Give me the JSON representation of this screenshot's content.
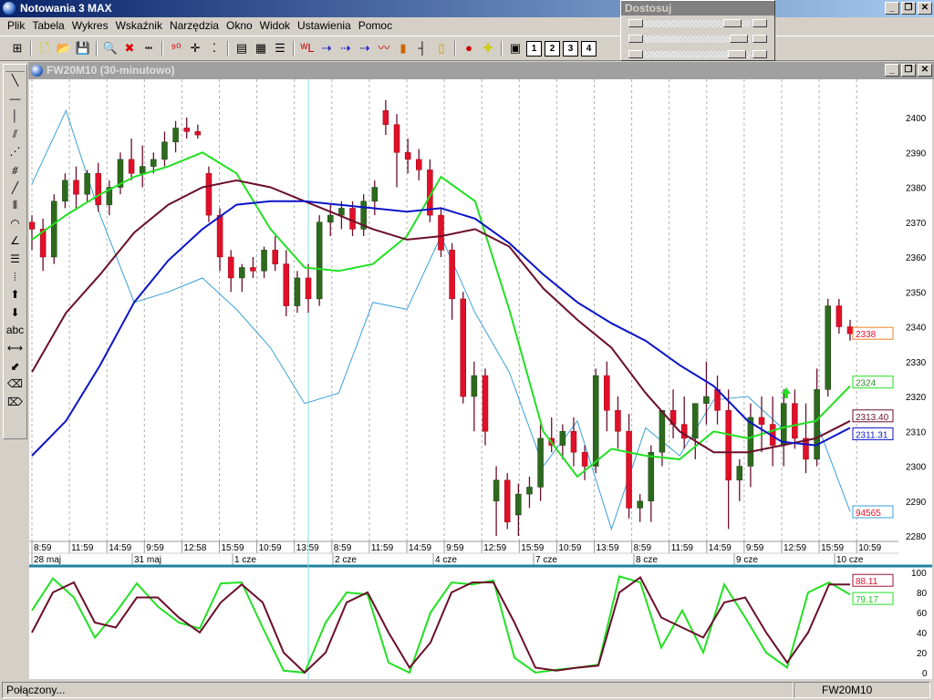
{
  "app": {
    "title": "Notowania 3 MAX"
  },
  "menu": [
    "Plik",
    "Tabela",
    "Wykres",
    "Wskaźnik",
    "Narzędzia",
    "Okno",
    "Widok",
    "Ustawienia",
    "Pomoc"
  ],
  "toolbar": {
    "icons": [
      "grid-icon",
      "new-icon",
      "open-icon",
      "save-icon",
      "zoom-icon",
      "delete-icon",
      "ruler-icon",
      "digits-icon",
      "crosshair-icon",
      "points-icon",
      "table-icon",
      "layout-icon",
      "list-icon",
      "wl-icon",
      "arrow1-icon",
      "arrow2-icon",
      "arrow3-icon",
      "line-chart-icon",
      "bar-chart-icon",
      "ohlc-icon",
      "candle-icon",
      "signal-icon",
      "add-marker-icon",
      "add-window-icon"
    ],
    "pages": [
      "1",
      "2",
      "3",
      "4"
    ]
  },
  "dostosuj": {
    "title": "Dostosuj",
    "sliders": [
      0.88,
      0.95,
      0.93
    ]
  },
  "window": {
    "title": "FW20M10 (30-minutowo)"
  },
  "drawing_tools": [
    "line-icon",
    "horizontal-line-icon",
    "vertical-line-icon",
    "parallel-lines-icon",
    "fan-icon",
    "gann-icon",
    "trendline-icon",
    "vertical-lines-icon",
    "arcs-icon",
    "fan-lines-icon",
    "fibonacci-icon",
    "time-zones-icon",
    "arrow-up-icon",
    "arrow-down-icon",
    "abc",
    "resize-icon",
    "move-icon",
    "eraser-icon",
    "eraser-all-icon"
  ],
  "colors": {
    "up": "#2d6a1e",
    "down": "#e0102a",
    "wick": "#6a1030",
    "ma_fast": "#22e022",
    "ma_mid": "#6b0f2a",
    "ma_slow": "#0a14c8",
    "thin": "#3aa0d8",
    "grid": "#b0b0b0"
  },
  "chart_data": [
    {
      "type": "candlestick",
      "ylim": [
        2280,
        2400
      ],
      "yticks": [
        2400,
        2390,
        2380,
        2370,
        2360,
        2350,
        2340,
        2330,
        2320,
        2310,
        2300,
        2290,
        2280
      ],
      "time_labels": [
        "8:59",
        "11:59",
        "14:59",
        "9:59",
        "12:58",
        "15:59",
        "10:59",
        "13:59",
        "8:59",
        "11:59",
        "14:59",
        "9:59",
        "12:59",
        "15:59",
        "10:59",
        "13:59",
        "8:59",
        "11:59",
        "14:59",
        "9:59",
        "12:59",
        "15:59",
        "10:59"
      ],
      "date_labels": [
        "28 maj",
        "31 maj",
        "1 cze",
        "2 cze",
        "4 cze",
        "7 cze",
        "8 cze",
        "9 cze",
        "10 cze"
      ],
      "ohlc": [
        [
          2370,
          2372,
          2362,
          2368
        ],
        [
          2368,
          2371,
          2356,
          2360
        ],
        [
          2360,
          2378,
          2358,
          2376
        ],
        [
          2376,
          2384,
          2374,
          2382
        ],
        [
          2382,
          2386,
          2374,
          2378
        ],
        [
          2378,
          2385,
          2376,
          2384
        ],
        [
          2384,
          2387,
          2373,
          2375
        ],
        [
          2375,
          2382,
          2372,
          2380
        ],
        [
          2380,
          2390,
          2378,
          2388
        ],
        [
          2388,
          2394,
          2382,
          2384
        ],
        [
          2384,
          2392,
          2380,
          2386
        ],
        [
          2386,
          2390,
          2384,
          2388
        ],
        [
          2388,
          2396,
          2386,
          2393
        ],
        [
          2393,
          2399,
          2390,
          2397
        ],
        [
          2397,
          2400,
          2394,
          2396
        ],
        [
          2396,
          2398,
          2394,
          2395
        ],
        [
          2384,
          2386,
          2370,
          2372
        ],
        [
          2372,
          2374,
          2356,
          2360
        ],
        [
          2360,
          2362,
          2350,
          2354
        ],
        [
          2354,
          2358,
          2350,
          2357
        ],
        [
          2357,
          2360,
          2354,
          2356
        ],
        [
          2356,
          2363,
          2354,
          2362
        ],
        [
          2362,
          2366,
          2356,
          2358
        ],
        [
          2358,
          2362,
          2343,
          2346
        ],
        [
          2346,
          2356,
          2344,
          2354
        ],
        [
          2354,
          2358,
          2344,
          2348
        ],
        [
          2348,
          2372,
          2346,
          2370
        ],
        [
          2370,
          2375,
          2366,
          2372
        ],
        [
          2372,
          2376,
          2368,
          2374
        ],
        [
          2374,
          2376,
          2366,
          2368
        ],
        [
          2368,
          2378,
          2366,
          2376
        ],
        [
          2376,
          2382,
          2372,
          2380
        ],
        [
          2402,
          2405,
          2395,
          2398
        ],
        [
          2398,
          2401,
          2380,
          2390
        ],
        [
          2390,
          2394,
          2384,
          2388
        ],
        [
          2388,
          2391,
          2382,
          2385
        ],
        [
          2385,
          2388,
          2370,
          2372
        ],
        [
          2372,
          2374,
          2360,
          2362
        ],
        [
          2362,
          2364,
          2342,
          2348
        ],
        [
          2348,
          2350,
          2318,
          2320
        ],
        [
          2320,
          2330,
          2310,
          2326
        ],
        [
          2326,
          2328,
          2306,
          2310
        ],
        [
          2290,
          2300,
          2280,
          2296
        ],
        [
          2296,
          2298,
          2282,
          2284
        ],
        [
          2286,
          2295,
          2280,
          2292
        ],
        [
          2292,
          2297,
          2288,
          2294
        ],
        [
          2294,
          2312,
          2290,
          2308
        ],
        [
          2308,
          2314,
          2304,
          2306
        ],
        [
          2306,
          2312,
          2302,
          2310
        ],
        [
          2310,
          2314,
          2300,
          2304
        ],
        [
          2304,
          2306,
          2296,
          2300
        ],
        [
          2300,
          2328,
          2298,
          2326
        ],
        [
          2326,
          2330,
          2310,
          2316
        ],
        [
          2316,
          2320,
          2305,
          2310
        ],
        [
          2310,
          2315,
          2285,
          2288
        ],
        [
          2288,
          2292,
          2284,
          2290
        ],
        [
          2290,
          2306,
          2284,
          2304
        ],
        [
          2304,
          2316,
          2300,
          2316
        ],
        [
          2316,
          2322,
          2308,
          2312
        ],
        [
          2312,
          2320,
          2305,
          2308
        ],
        [
          2308,
          2318,
          2302,
          2318
        ],
        [
          2318,
          2330,
          2312,
          2320
        ],
        [
          2322,
          2326,
          2312,
          2316
        ],
        [
          2316,
          2322,
          2282,
          2296
        ],
        [
          2296,
          2302,
          2290,
          2300
        ],
        [
          2300,
          2318,
          2294,
          2314
        ],
        [
          2314,
          2320,
          2304,
          2312
        ],
        [
          2312,
          2320,
          2300,
          2306
        ],
        [
          2306,
          2322,
          2300,
          2318
        ],
        [
          2318,
          2322,
          2305,
          2308
        ],
        [
          2308,
          2318,
          2298,
          2302
        ],
        [
          2302,
          2328,
          2300,
          2322
        ],
        [
          2322,
          2348,
          2320,
          2346
        ],
        [
          2346,
          2348,
          2338,
          2340
        ],
        [
          2340,
          2342,
          2336,
          2338
        ]
      ],
      "series": [
        {
          "color": "#22e022",
          "values": [
            2365,
            2372,
            2378,
            2383,
            2386,
            2390,
            2384,
            2368,
            2357,
            2356,
            2358,
            2366,
            2383,
            2376,
            2345,
            2310,
            2297,
            2305,
            2303,
            2302,
            2310,
            2308,
            2311,
            2313,
            2323
          ],
          "last_label": "2324"
        },
        {
          "color": "#6b0f2a",
          "values": [
            2327,
            2344,
            2355,
            2367,
            2375,
            2380,
            2382,
            2380,
            2376,
            2372,
            2368,
            2365,
            2366,
            2368,
            2363,
            2351,
            2342,
            2334,
            2321,
            2310,
            2304,
            2304,
            2306,
            2308,
            2313
          ],
          "last_label": "2313.40"
        },
        {
          "color": "#0a14c8",
          "values": [
            2303,
            2313,
            2329,
            2347,
            2359,
            2368,
            2375,
            2376,
            2376,
            2375,
            2374,
            2373,
            2374,
            2371,
            2364,
            2355,
            2347,
            2341,
            2336,
            2329,
            2323,
            2313,
            2307,
            2306,
            2311
          ],
          "last_label": "2311.31"
        },
        {
          "color": "#3aa0d8",
          "values": [
            2381,
            2402,
            2372,
            2347,
            2350,
            2354,
            2345,
            2334,
            2318,
            2321,
            2347,
            2345,
            2366,
            2344,
            2327,
            2300,
            2313,
            2282,
            2311,
            2303,
            2319,
            2320,
            2311,
            2313,
            2287
          ],
          "last_label": "94565"
        }
      ],
      "last_price_label": "2338"
    },
    {
      "type": "line",
      "ylim": [
        0,
        100
      ],
      "yticks": [
        100,
        80,
        60,
        40,
        20,
        0
      ],
      "series": [
        {
          "color": "#22e022",
          "values": [
            62,
            94,
            75,
            35,
            60,
            89,
            66,
            50,
            44,
            89,
            90,
            45,
            2,
            0,
            50,
            80,
            78,
            10,
            0,
            60,
            90,
            88,
            92,
            15,
            0,
            3,
            5,
            8,
            96,
            90,
            25,
            62,
            20,
            88,
            55,
            20,
            5,
            80,
            90,
            78
          ],
          "last_label": "79.17"
        },
        {
          "color": "#6b0f2a",
          "values": [
            40,
            80,
            90,
            50,
            45,
            75,
            75,
            55,
            40,
            70,
            88,
            70,
            20,
            0,
            20,
            70,
            80,
            40,
            5,
            30,
            80,
            90,
            90,
            50,
            5,
            2,
            5,
            7,
            80,
            95,
            55,
            45,
            35,
            70,
            75,
            40,
            10,
            40,
            88,
            88
          ],
          "last_label": "88.11"
        }
      ]
    }
  ],
  "status": {
    "connection": "Połączony...",
    "symbol": "FW20M10"
  }
}
